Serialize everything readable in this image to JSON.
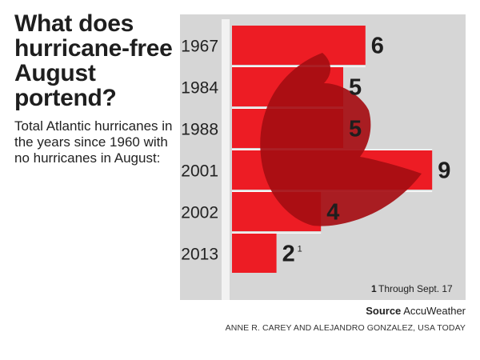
{
  "chart_data": {
    "type": "bar",
    "orientation": "horizontal",
    "title": "What does hurricane-free August portend?",
    "subtitle": "Total Atlantic hurricanes in the years since 1960 with no hurricanes in August:",
    "categories": [
      "1967",
      "1984",
      "1988",
      "2001",
      "2002",
      "2013"
    ],
    "values": [
      6,
      5,
      5,
      9,
      4,
      2
    ],
    "value_labels": [
      "6",
      "5",
      "5",
      "9",
      "4",
      "2"
    ],
    "footnote_marks": [
      "",
      "",
      "",
      "",
      "",
      "1"
    ],
    "xlim": [
      0,
      9
    ],
    "footnote_number": "1",
    "footnote_text": "Through Sept. 17",
    "grid": false,
    "background_icon": "hurricane-symbol-icon"
  },
  "footer": {
    "source_label": "Source",
    "source_name": "AccuWeather",
    "credit": "ANNE R. CAREY AND ALEJANDRO GONZALEZ, USA TODAY"
  },
  "colors": {
    "bar": "#ed1c24",
    "panel": "#d6d6d6",
    "hurricane_symbol": "#a50d12",
    "text": "#1e1e1e"
  }
}
